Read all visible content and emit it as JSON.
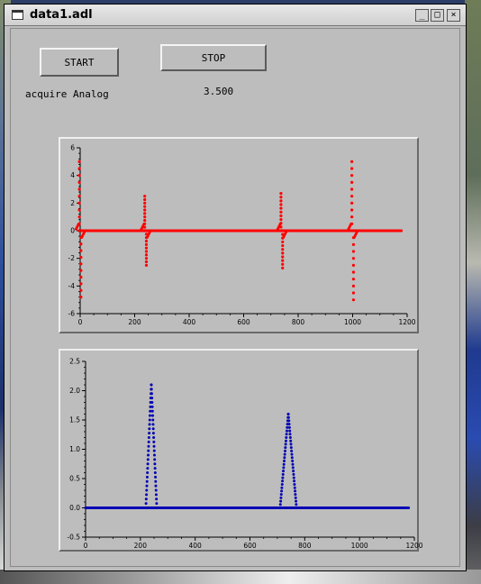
{
  "window": {
    "title": "data1.adl",
    "controls": {
      "minimize": "_",
      "maximize": "□",
      "close": "×"
    }
  },
  "buttons": {
    "start_label": "START",
    "stop_label": "STOP"
  },
  "acquire_label": "acquire Analog",
  "value_display": "3.500",
  "colors": {
    "plot1_series": "#ff0000",
    "plot2_series": "#0000b4",
    "panel_bg": "#bdbdbd"
  },
  "chart_data": [
    {
      "type": "scatter",
      "xlim": [
        0,
        1200
      ],
      "ylim": [
        -6,
        6
      ],
      "xticks": [
        "0",
        "200",
        "400",
        "600",
        "800",
        "1000",
        "1200"
      ],
      "yticks": [
        "6",
        "4",
        "2",
        "0",
        "-2",
        "-4",
        "-6"
      ],
      "series": [
        {
          "baseline": 0,
          "x_range": [
            0,
            1180
          ],
          "spikes": [
            {
              "x": 0,
              "min": -4.8,
              "max": 5.0
            },
            {
              "x": 240,
              "min": -2.5,
              "max": 2.5
            },
            {
              "x": 740,
              "min": -2.7,
              "max": 2.7
            },
            {
              "x": 1000,
              "min": -5.0,
              "max": 5.0
            }
          ]
        }
      ]
    },
    {
      "type": "scatter",
      "xlim": [
        0,
        1200
      ],
      "ylim": [
        -0.5,
        2.5
      ],
      "xticks": [
        "0",
        "200",
        "400",
        "600",
        "800",
        "1000",
        "1200"
      ],
      "yticks": [
        "2.5",
        "2.0",
        "1.5",
        "1.0",
        "0.5",
        "0.0",
        "-0.5"
      ],
      "series": [
        {
          "baseline": 0,
          "x_range": [
            0,
            1180
          ],
          "peaks": [
            {
              "center": 240,
              "halfwidth": 20,
              "height": 2.1
            },
            {
              "center": 740,
              "halfwidth": 30,
              "height": 1.6
            }
          ]
        }
      ]
    }
  ]
}
